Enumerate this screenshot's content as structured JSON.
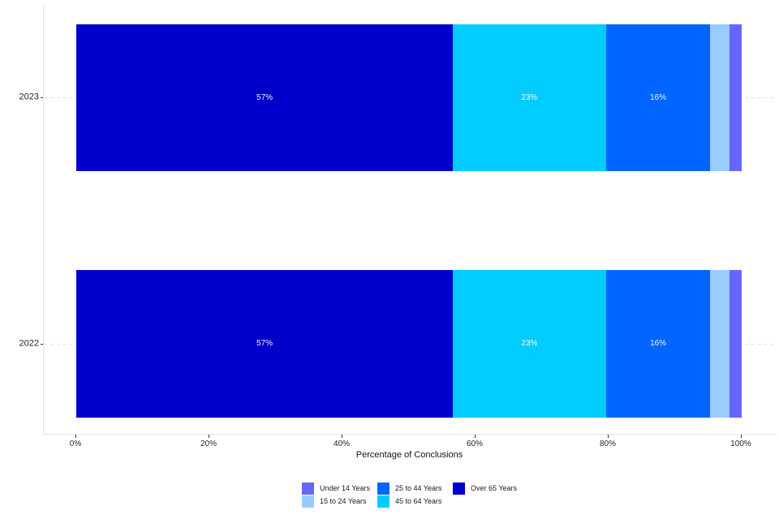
{
  "chart_data": {
    "type": "bar",
    "orientation": "horizontal",
    "stacked": true,
    "title": "",
    "xlabel": "Percentage of Conclusions",
    "ylabel": "",
    "categories": [
      "2023",
      "2022"
    ],
    "xlim": [
      0,
      100
    ],
    "x_ticks": [
      {
        "value": 0,
        "label": "0%"
      },
      {
        "value": 20,
        "label": "20%"
      },
      {
        "value": 40,
        "label": "40%"
      },
      {
        "value": 60,
        "label": "60%"
      },
      {
        "value": 80,
        "label": "80%"
      },
      {
        "value": 100,
        "label": "100%"
      }
    ],
    "grid": {
      "horizontal_major": "dashed",
      "vertical": "none"
    },
    "series": [
      {
        "name": "Over 65 Years",
        "color": "#0000CC",
        "values": [
          56.6,
          56.6
        ],
        "labels": [
          "57%",
          "57%"
        ]
      },
      {
        "name": "45 to 64 Years",
        "color": "#00CCFF",
        "values": [
          23.0,
          23.0
        ],
        "labels": [
          "23%",
          "23%"
        ]
      },
      {
        "name": "25 to 44 Years",
        "color": "#0066FF",
        "values": [
          15.7,
          15.7
        ],
        "labels": [
          "16%",
          "16%"
        ]
      },
      {
        "name": "15 to 24 Years",
        "color": "#99CCFF",
        "values": [
          2.9,
          2.9
        ],
        "labels": [
          "",
          ""
        ]
      },
      {
        "name": "Under 14 Years",
        "color": "#6666FF",
        "values": [
          1.8,
          1.8
        ],
        "labels": [
          "",
          ""
        ]
      }
    ],
    "value_label_color": "#FFFFFF",
    "legend": {
      "position": "bottom",
      "columns": [
        [
          {
            "label": "Under 14 Years",
            "color": "#6666FF"
          },
          {
            "label": "15 to 24 Years",
            "color": "#99CCFF"
          }
        ],
        [
          {
            "label": "25 to 44 Years",
            "color": "#0066FF"
          },
          {
            "label": "45 to 64 Years",
            "color": "#00CCFF"
          }
        ],
        [
          {
            "label": "Over 65 Years",
            "color": "#0000CC"
          }
        ]
      ]
    },
    "axis_colors": {
      "line": "#E3E3E3",
      "tick": "#333333",
      "text": "#262626"
    }
  }
}
